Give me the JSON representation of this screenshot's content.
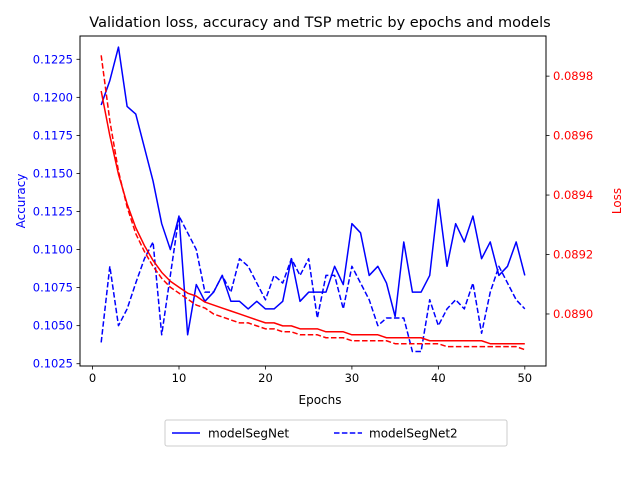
{
  "chart_data": {
    "type": "line",
    "title": "Validation loss, accuracy and TSP metric by epochs and models",
    "xlabel": "Epochs",
    "ylabel": "Accuracy",
    "y2label": "Loss",
    "xlim": [
      -1.45,
      52.45
    ],
    "ylim": [
      0.10235,
      0.12403
    ],
    "y2lim": [
      0.088825,
      0.089935
    ],
    "xticks": [
      0,
      10,
      20,
      30,
      40,
      50
    ],
    "yticks": [
      0.1025,
      0.105,
      0.1075,
      0.11,
      0.1125,
      0.115,
      0.1175,
      0.12,
      0.1225
    ],
    "y2ticks": [
      0.089,
      0.0892,
      0.0894,
      0.0896,
      0.0898
    ],
    "grid": false,
    "legend": "bottom-center, below plot",
    "colors": {
      "accuracy": "#0000ff",
      "loss": "#ff0000"
    },
    "x": [
      1,
      2,
      3,
      4,
      5,
      6,
      7,
      8,
      9,
      10,
      11,
      12,
      13,
      14,
      15,
      16,
      17,
      18,
      19,
      20,
      21,
      22,
      23,
      24,
      25,
      26,
      27,
      28,
      29,
      30,
      31,
      32,
      33,
      34,
      35,
      36,
      37,
      38,
      39,
      40,
      41,
      42,
      43,
      44,
      45,
      46,
      47,
      48,
      49,
      50
    ],
    "series": [
      {
        "name": "modelSegNet",
        "axis": "left",
        "color": "#0000ff",
        "dash": "solid",
        "values": [
          0.1195,
          0.1211,
          0.1233,
          0.1194,
          0.1189,
          0.1167,
          0.1145,
          0.1117,
          0.11,
          0.1122,
          0.1044,
          0.1077,
          0.1066,
          0.1072,
          0.1083,
          0.1066,
          0.1066,
          0.1061,
          0.1066,
          0.1061,
          0.1061,
          0.1066,
          0.1094,
          0.1066,
          0.1072,
          0.1072,
          0.1072,
          0.1089,
          0.1077,
          0.1117,
          0.1111,
          0.1083,
          0.1089,
          0.1078,
          0.1056,
          0.1105,
          0.1072,
          0.1072,
          0.1083,
          0.1133,
          0.1089,
          0.1117,
          0.1105,
          0.1122,
          0.1094,
          0.1105,
          0.1083,
          0.1089,
          0.1105,
          0.1083
        ]
      },
      {
        "name": "modelSegNet2",
        "axis": "left",
        "color": "#0000ff",
        "dash": "dashed",
        "values": [
          0.1039,
          0.1089,
          0.105,
          0.1061,
          0.1078,
          0.1094,
          0.1105,
          0.1044,
          0.1083,
          0.1122,
          0.1111,
          0.11,
          0.1072,
          0.1072,
          0.1083,
          0.1072,
          0.1094,
          0.1089,
          0.1078,
          0.1067,
          0.1083,
          0.1078,
          0.1094,
          0.1083,
          0.1094,
          0.1055,
          0.1083,
          0.1083,
          0.1061,
          0.1089,
          0.1078,
          0.1067,
          0.105,
          0.1055,
          0.1055,
          0.1055,
          0.1033,
          0.1033,
          0.1067,
          0.105,
          0.1061,
          0.1067,
          0.1061,
          0.1078,
          0.1045,
          0.1072,
          0.1089,
          0.1078,
          0.1067,
          0.1061
        ]
      },
      {
        "name": "modelSegNet",
        "axis": "right",
        "color": "#ff0000",
        "dash": "solid",
        "values": [
          0.08975,
          0.0896,
          0.08947,
          0.08937,
          0.08929,
          0.08923,
          0.08918,
          0.08914,
          0.08911,
          0.08909,
          0.08907,
          0.08906,
          0.08904,
          0.08903,
          0.08902,
          0.08901,
          0.089,
          0.08899,
          0.08898,
          0.08897,
          0.08897,
          0.08896,
          0.08896,
          0.08895,
          0.08895,
          0.08895,
          0.08894,
          0.08894,
          0.08894,
          0.08893,
          0.08893,
          0.08893,
          0.08893,
          0.08892,
          0.08892,
          0.08892,
          0.08892,
          0.08892,
          0.08891,
          0.08891,
          0.08891,
          0.08891,
          0.08891,
          0.08891,
          0.08891,
          0.0889,
          0.0889,
          0.0889,
          0.0889,
          0.0889
        ]
      },
      {
        "name": "modelSegNet2",
        "axis": "right",
        "color": "#ff0000",
        "dash": "dashed",
        "values": [
          0.08987,
          0.08965,
          0.08948,
          0.08936,
          0.08927,
          0.08921,
          0.08916,
          0.08912,
          0.08909,
          0.08907,
          0.08905,
          0.08903,
          0.08902,
          0.089,
          0.08899,
          0.08898,
          0.08897,
          0.08897,
          0.08896,
          0.08895,
          0.08895,
          0.08894,
          0.08894,
          0.08893,
          0.08893,
          0.08893,
          0.08892,
          0.08892,
          0.08892,
          0.08891,
          0.08891,
          0.08891,
          0.08891,
          0.08891,
          0.0889,
          0.0889,
          0.0889,
          0.0889,
          0.0889,
          0.0889,
          0.08889,
          0.08889,
          0.08889,
          0.08889,
          0.08889,
          0.08889,
          0.08889,
          0.08889,
          0.08889,
          0.08888
        ]
      }
    ],
    "legend_entries": [
      {
        "name": "modelSegNet",
        "dash": "solid"
      },
      {
        "name": "modelSegNet2",
        "dash": "dashed"
      }
    ]
  }
}
